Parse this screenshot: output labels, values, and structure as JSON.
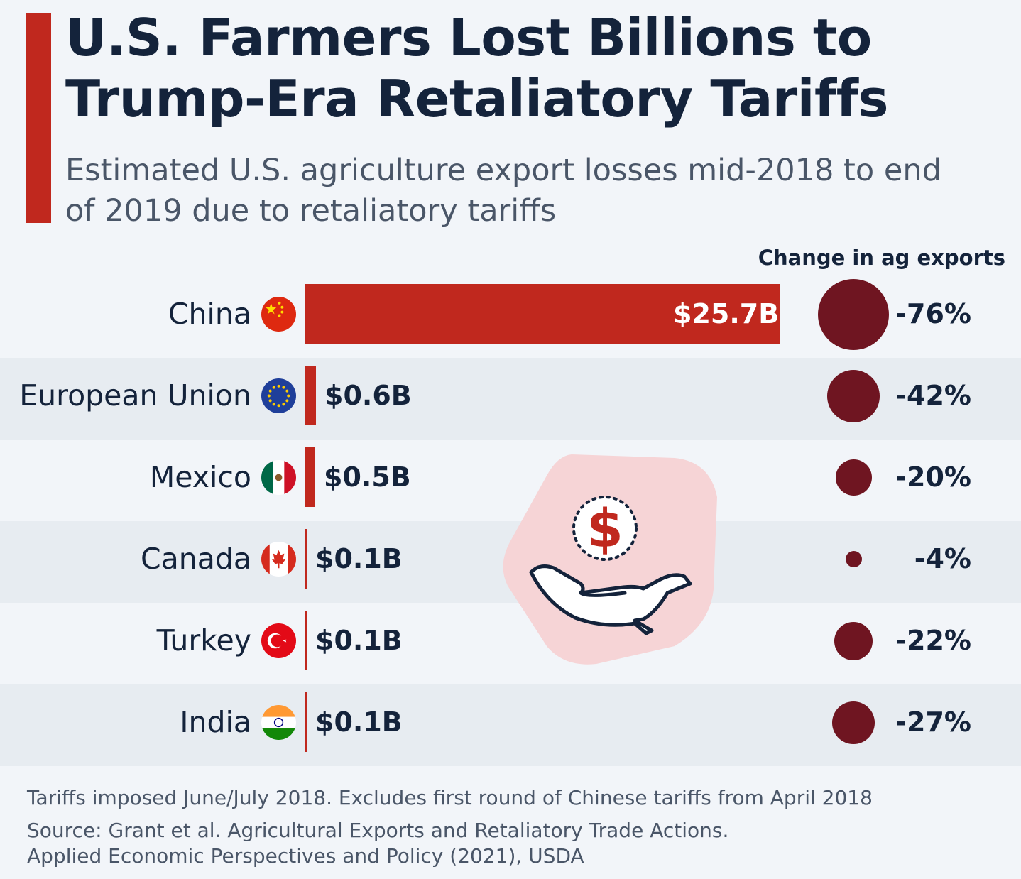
{
  "title": "U.S. Farmers Lost Billions to Trump-Era Retaliatory Tariffs",
  "subtitle": "Estimated U.S. agriculture export losses mid-2018 to end of 2019 due to retaliatory tariffs",
  "column_header": "Change in ag exports",
  "colors": {
    "accent": "#c0281e",
    "bubble": "#6f1521",
    "text": "#14233b"
  },
  "illustration": "hand-holding-dollar-icon",
  "chart_data": {
    "type": "bar",
    "categories": [
      "China",
      "European Union",
      "Mexico",
      "Canada",
      "Turkey",
      "India"
    ],
    "values": [
      25.7,
      0.6,
      0.5,
      0.1,
      0.1,
      0.1
    ],
    "value_labels": [
      "$25.7B",
      "$0.6B",
      "$0.5B",
      "$0.1B",
      "$0.1B",
      "$0.1B"
    ],
    "flags": [
      "china-flag-icon",
      "eu-flag-icon",
      "mexico-flag-icon",
      "canada-flag-icon",
      "turkey-flag-icon",
      "india-flag-icon"
    ],
    "change_values": [
      -76,
      -42,
      -20,
      -4,
      -22,
      -27
    ],
    "change_labels": [
      "-76%",
      "-42%",
      "-20%",
      "-4%",
      "-22%",
      "-27%"
    ]
  },
  "footnotes": [
    "Tariffs imposed June/July 2018. Excludes first round of Chinese tariffs from April 2018",
    "Source: Grant et al. Agricultural Exports and Retaliatory Trade Actions.",
    "Applied Economic Perspectives and Policy (2021), USDA"
  ]
}
